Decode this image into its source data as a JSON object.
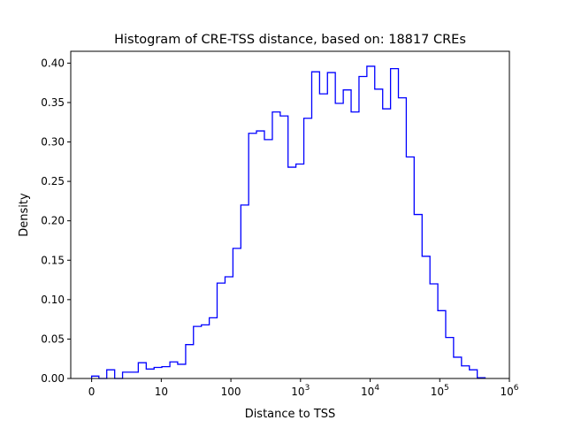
{
  "chart_data": {
    "type": "histogram",
    "histtype": "step",
    "title": "Histogram of CRE-TSS distance, based on: 18817 CREs",
    "xlabel": "Distance to TSS",
    "ylabel": "Density",
    "xscale": "symlog",
    "linthresh": 10,
    "xlim": [
      -3,
      1000000
    ],
    "ylim": [
      0,
      0.415
    ],
    "x_ticks": [
      {
        "value": 0,
        "label": "0",
        "exp": ""
      },
      {
        "value": 10,
        "label": "10",
        "exp": ""
      },
      {
        "value": 100,
        "label": "100",
        "exp": ""
      },
      {
        "value": 1000,
        "label": "10",
        "exp": "3"
      },
      {
        "value": 10000,
        "label": "10",
        "exp": "4"
      },
      {
        "value": 100000,
        "label": "10",
        "exp": "5"
      },
      {
        "value": 1000000,
        "label": "10",
        "exp": "6"
      }
    ],
    "y_ticks": [
      "0.00",
      "0.05",
      "0.10",
      "0.15",
      "0.20",
      "0.25",
      "0.30",
      "0.35",
      "0.40"
    ],
    "color": "#0000ff",
    "grid": false,
    "bin_edges": [
      0,
      1.04,
      2.17,
      3.31,
      4.44,
      5.57,
      6.7,
      7.84,
      8.97,
      10.2,
      13.3,
      17.2,
      22.4,
      29,
      37.7,
      48.9,
      63.4,
      82.4,
      107,
      139,
      180,
      233,
      303,
      394,
      511,
      662,
      859,
      1116,
      1449,
      1879,
      2438,
      3162,
      4111,
      5333,
      6918,
      8974,
      11641,
      15136,
      19634,
      25468,
      33037,
      42855,
      55719,
      72277,
      93756,
      121619,
      157761,
      205116,
      266073,
      345144,
      447713
    ],
    "density": [
      0.003,
      0,
      0.011,
      0,
      0.008,
      0.008,
      0.02,
      0.012,
      0.014,
      0.015,
      0.021,
      0.018,
      0.043,
      0.066,
      0.068,
      0.077,
      0.121,
      0.129,
      0.165,
      0.22,
      0.311,
      0.314,
      0.303,
      0.338,
      0.333,
      0.268,
      0.272,
      0.33,
      0.389,
      0.361,
      0.388,
      0.349,
      0.366,
      0.338,
      0.383,
      0.396,
      0.367,
      0.342,
      0.393,
      0.356,
      0.281,
      0.208,
      0.155,
      0.12,
      0.086,
      0.052,
      0.027,
      0.016,
      0.011,
      0.001
    ]
  }
}
